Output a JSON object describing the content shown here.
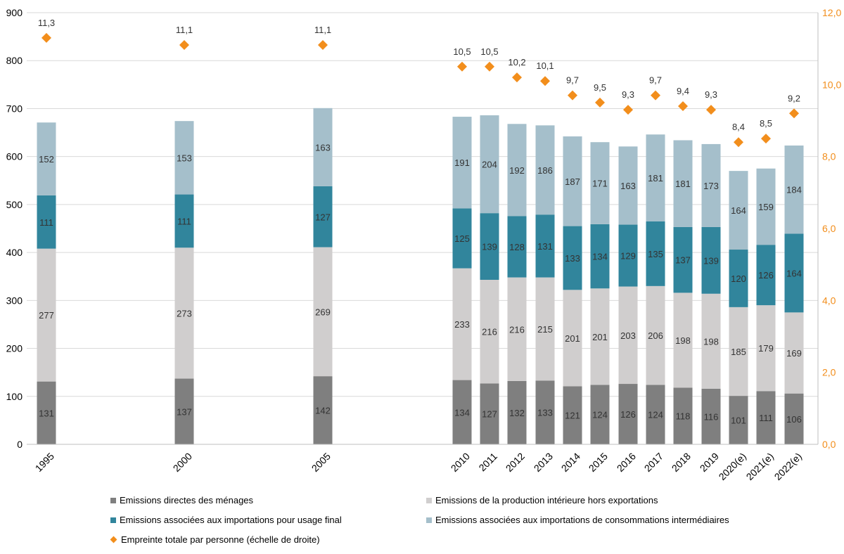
{
  "chart_data": {
    "type": "bar",
    "stacked": true,
    "categories": [
      "1995",
      "2000",
      "2005",
      "2010",
      "2011",
      "2012",
      "2013",
      "2014",
      "2015",
      "2016",
      "2017",
      "2018",
      "2019",
      "2020(e)",
      "2021(e)",
      "2022(e)"
    ],
    "series": [
      {
        "name": "Emissions directes des ménages",
        "color": "#7f7f7f",
        "values": [
          131,
          137,
          142,
          134,
          127,
          132,
          133,
          121,
          124,
          126,
          124,
          118,
          116,
          101,
          111,
          106
        ],
        "labels": [
          "131",
          "137",
          "142",
          "134",
          "127",
          "132",
          "133",
          "121",
          "124",
          "126",
          "124",
          "118",
          "116",
          "101",
          "111",
          "106"
        ]
      },
      {
        "name": "Emissions de la production intérieure hors exportations",
        "color": "#d0cece",
        "values": [
          277,
          273,
          269,
          233,
          216,
          216,
          215,
          201,
          201,
          203,
          206,
          198,
          198,
          185,
          179,
          169
        ],
        "labels": [
          "277",
          "273",
          "269",
          "233",
          "216",
          "216",
          "215",
          "201",
          "201",
          "203",
          "206",
          "198",
          "198",
          "185",
          "179",
          "169"
        ]
      },
      {
        "name": "Emissions associées aux importations pour usage final",
        "color": "#31859c",
        "values": [
          111,
          111,
          127,
          125,
          139,
          128,
          131,
          133,
          134,
          129,
          135,
          137,
          139,
          120,
          126,
          164
        ],
        "labels": [
          "111",
          "111",
          "127",
          "125",
          "139",
          "128",
          "131",
          "133",
          "134",
          "129",
          "135",
          "137",
          "139",
          "120",
          "126",
          "164"
        ]
      },
      {
        "name": "Emissions associées aux importations de consommations intermédiaires",
        "color": "#a5bfcb",
        "values": [
          152,
          153,
          163,
          191,
          204,
          192,
          186,
          187,
          171,
          163,
          181,
          181,
          173,
          164,
          159,
          184
        ],
        "labels": [
          "152",
          "153",
          "163",
          "191",
          "204",
          "192",
          "186",
          "187",
          "171",
          "163",
          "181",
          "181",
          "173",
          "164",
          "159",
          "184"
        ]
      }
    ],
    "line_series": {
      "name": "Empreinte totale par personne (échelle de droite)",
      "color": "#f28e1c",
      "marker": "diamond",
      "axis": "right",
      "values": [
        11.3,
        11.1,
        11.1,
        10.5,
        10.5,
        10.2,
        10.1,
        9.7,
        9.5,
        9.3,
        9.7,
        9.4,
        9.3,
        8.4,
        8.5,
        9.2
      ],
      "labels": [
        "11,3",
        "11,1",
        "11,1",
        "10,5",
        "10,5",
        "10,2",
        "10,1",
        "9,7",
        "9,5",
        "9,3",
        "9,7",
        "9,4",
        "9,3",
        "8,4",
        "8,5",
        "9,2"
      ]
    },
    "ylim": [
      0,
      900
    ],
    "yticks": [
      "0",
      "100",
      "200",
      "300",
      "400",
      "500",
      "600",
      "700",
      "800",
      "900"
    ],
    "y2lim": [
      0,
      12
    ],
    "y2ticks": [
      "0,0",
      "2,0",
      "4,0",
      "6,0",
      "8,0",
      "10,0",
      "12,0"
    ],
    "y2color": "#f28e1c",
    "grid": true,
    "legend_position": "bottom"
  }
}
